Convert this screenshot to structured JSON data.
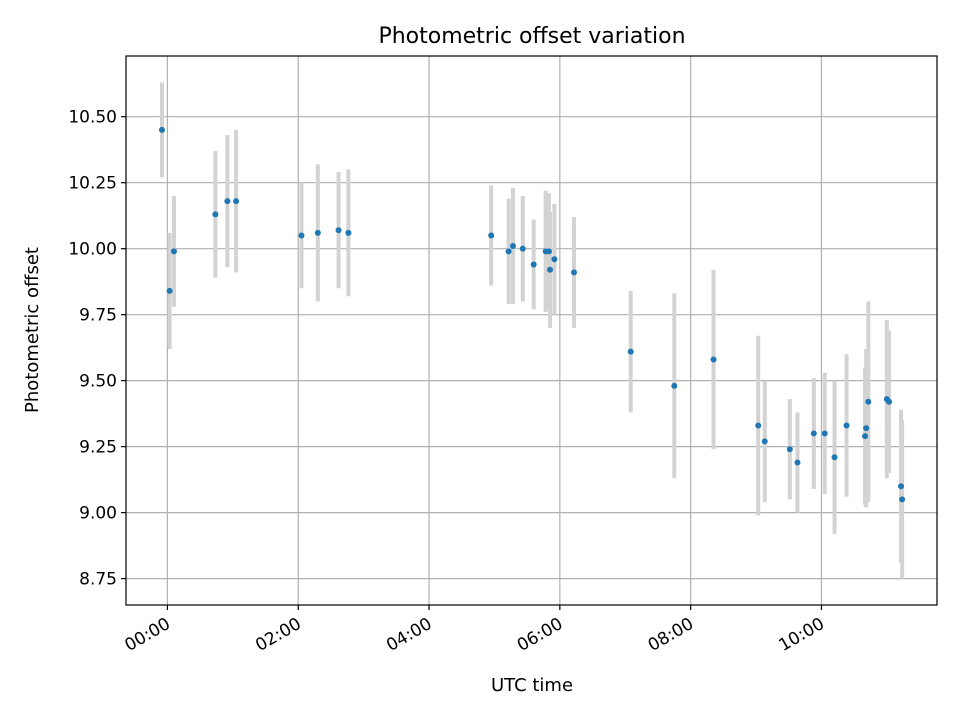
{
  "chart_data": {
    "type": "scatter",
    "title": "Photometric offset variation",
    "xlabel": "UTC time",
    "ylabel": "Photometric offset",
    "x_ticks": [
      "00:00",
      "02:00",
      "04:00",
      "06:00",
      "08:00",
      "10:00"
    ],
    "y_ticks": [
      "8.75",
      "9.00",
      "9.25",
      "9.50",
      "9.75",
      "10.00",
      "10.25",
      "10.50"
    ],
    "xlim": [
      "-00:38",
      "11:46"
    ],
    "ylim": [
      8.65,
      10.73
    ],
    "grid": true,
    "colors": {
      "point": "#1f77b4",
      "errorbar": "#d3d3d3",
      "grid": "#b0b0b0"
    },
    "points": [
      {
        "x": "-00:05",
        "y": 10.45,
        "err": 0.18
      },
      {
        "x": "00:02",
        "y": 9.84,
        "err": 0.22
      },
      {
        "x": "00:06",
        "y": 9.99,
        "err": 0.21
      },
      {
        "x": "00:44",
        "y": 10.13,
        "err": 0.24
      },
      {
        "x": "00:55",
        "y": 10.18,
        "err": 0.25
      },
      {
        "x": "01:03",
        "y": 10.18,
        "err": 0.27
      },
      {
        "x": "02:03",
        "y": 10.05,
        "err": 0.2
      },
      {
        "x": "02:18",
        "y": 10.06,
        "err": 0.26
      },
      {
        "x": "02:37",
        "y": 10.07,
        "err": 0.22
      },
      {
        "x": "02:46",
        "y": 10.06,
        "err": 0.24
      },
      {
        "x": "04:57",
        "y": 10.05,
        "err": 0.19
      },
      {
        "x": "05:13",
        "y": 9.99,
        "err": 0.2
      },
      {
        "x": "05:17",
        "y": 10.01,
        "err": 0.22
      },
      {
        "x": "05:26",
        "y": 10.0,
        "err": 0.2
      },
      {
        "x": "05:36",
        "y": 9.94,
        "err": 0.17
      },
      {
        "x": "05:47",
        "y": 9.99,
        "err": 0.23
      },
      {
        "x": "05:51",
        "y": 9.92,
        "err": 0.22
      },
      {
        "x": "05:55",
        "y": 9.96,
        "err": 0.21
      },
      {
        "x": "05:50",
        "y": 9.99,
        "err": 0.22
      },
      {
        "x": "06:13",
        "y": 9.91,
        "err": 0.21
      },
      {
        "x": "07:05",
        "y": 9.61,
        "err": 0.23
      },
      {
        "x": "07:45",
        "y": 9.48,
        "err": 0.35
      },
      {
        "x": "08:21",
        "y": 9.58,
        "err": 0.34
      },
      {
        "x": "09:02",
        "y": 9.33,
        "err": 0.34
      },
      {
        "x": "09:08",
        "y": 9.27,
        "err": 0.23
      },
      {
        "x": "09:31",
        "y": 9.24,
        "err": 0.19
      },
      {
        "x": "09:38",
        "y": 9.19,
        "err": 0.19
      },
      {
        "x": "09:53",
        "y": 9.3,
        "err": 0.21
      },
      {
        "x": "10:03",
        "y": 9.3,
        "err": 0.23
      },
      {
        "x": "10:12",
        "y": 9.21,
        "err": 0.29
      },
      {
        "x": "10:23",
        "y": 9.33,
        "err": 0.27
      },
      {
        "x": "10:40",
        "y": 9.29,
        "err": 0.26
      },
      {
        "x": "10:41",
        "y": 9.32,
        "err": 0.3
      },
      {
        "x": "10:43",
        "y": 9.42,
        "err": 0.38
      },
      {
        "x": "11:00",
        "y": 9.43,
        "err": 0.3
      },
      {
        "x": "11:02",
        "y": 9.42,
        "err": 0.27
      },
      {
        "x": "11:13",
        "y": 9.1,
        "err": 0.29
      },
      {
        "x": "11:14",
        "y": 9.05,
        "err": 0.3
      }
    ]
  }
}
